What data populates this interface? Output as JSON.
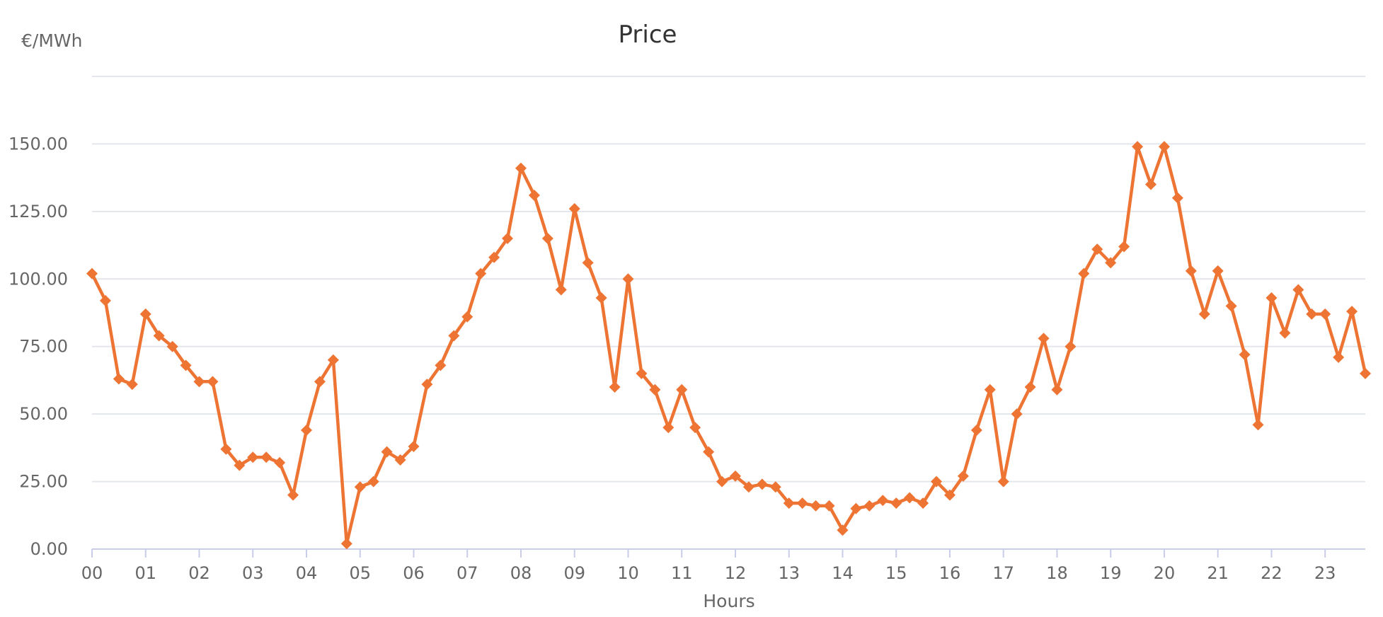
{
  "chart_data": {
    "type": "line",
    "title": "Price",
    "ylabel": "€/MWh",
    "xlabel": "Hours",
    "color": "#ed7433",
    "marker": "diamond",
    "grid": true,
    "ylim": [
      0,
      175
    ],
    "y_ticks": [
      0,
      25,
      50,
      75,
      100,
      125,
      150
    ],
    "y_tick_labels": [
      "0.00",
      "25.00",
      "50.00",
      "75.00",
      "100.00",
      "125.00",
      "150.00"
    ],
    "x_range": [
      0,
      23.75
    ],
    "x_ticks": [
      0,
      1,
      2,
      3,
      4,
      5,
      6,
      7,
      8,
      9,
      10,
      11,
      12,
      13,
      14,
      15,
      16,
      17,
      18,
      19,
      20,
      21,
      22,
      23
    ],
    "x_tick_labels": [
      "00",
      "01",
      "02",
      "03",
      "04",
      "05",
      "06",
      "07",
      "08",
      "09",
      "10",
      "11",
      "12",
      "13",
      "14",
      "15",
      "16",
      "17",
      "18",
      "19",
      "20",
      "21",
      "22",
      "23"
    ],
    "series": [
      {
        "x": [
          0,
          0.25,
          0.5,
          0.75,
          1,
          1.25,
          1.5,
          1.75,
          2,
          2.25,
          2.5,
          2.75,
          3,
          3.25,
          3.5,
          3.75,
          4,
          4.25,
          4.5,
          4.75,
          5,
          5.25,
          5.5,
          5.75,
          6,
          6.25,
          6.5,
          6.75,
          7,
          7.25,
          7.5,
          7.75,
          8,
          8.25,
          8.5,
          8.75,
          9,
          9.25,
          9.5,
          9.75,
          10,
          10.25,
          10.5,
          10.75,
          11,
          11.25,
          11.5,
          11.75,
          12,
          12.25,
          12.5,
          12.75,
          13,
          13.25,
          13.5,
          13.75,
          14,
          14.25,
          14.5,
          14.75,
          15,
          15.25,
          15.5,
          15.75,
          16,
          16.25,
          16.5,
          16.75,
          17,
          17.25,
          17.5,
          17.75,
          18,
          18.25,
          18.5,
          18.75,
          19,
          19.25,
          19.5,
          19.75,
          20,
          20.25,
          20.5,
          20.75,
          21,
          21.25,
          21.5,
          21.75,
          22,
          22.25,
          22.5,
          22.75,
          23,
          23.25,
          23.5,
          23.75
        ],
        "values": [
          102,
          92,
          63,
          61,
          87,
          79,
          75,
          68,
          62,
          62,
          37,
          31,
          34,
          34,
          32,
          20,
          44,
          62,
          70,
          2,
          23,
          25,
          36,
          33,
          38,
          61,
          68,
          79,
          86,
          102,
          108,
          115,
          141,
          131,
          115,
          96,
          126,
          106,
          93,
          60,
          100,
          65,
          59,
          45,
          59,
          45,
          36,
          25,
          27,
          23,
          24,
          23,
          17,
          17,
          16,
          16,
          7,
          15,
          16,
          18,
          17,
          19,
          17,
          25,
          20,
          27,
          44,
          59,
          25,
          50,
          60,
          78,
          59,
          75,
          102,
          111,
          106,
          112,
          149,
          135,
          149,
          130,
          103,
          87,
          103,
          90,
          72,
          46,
          93,
          80,
          96,
          87,
          87,
          71,
          88,
          65
        ]
      }
    ]
  }
}
